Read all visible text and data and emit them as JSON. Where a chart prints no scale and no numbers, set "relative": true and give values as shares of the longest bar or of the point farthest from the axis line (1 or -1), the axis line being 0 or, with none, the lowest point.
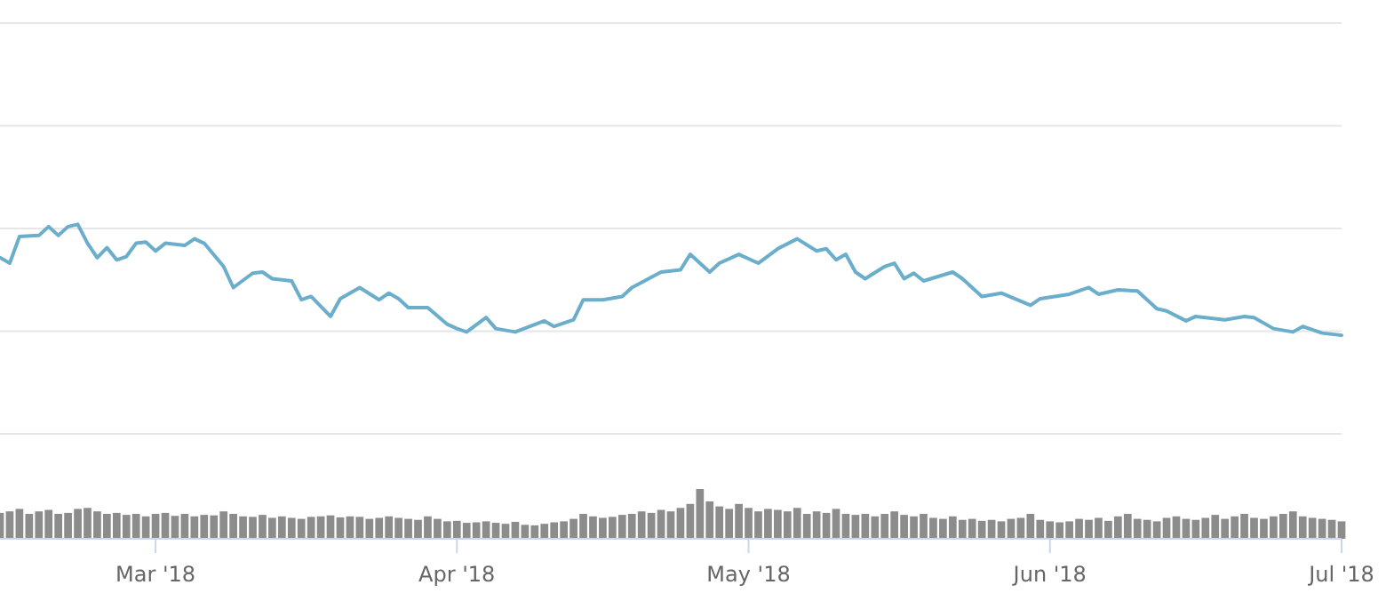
{
  "chart_data": [
    {
      "type": "line",
      "relative": true,
      "xlim": [
        "2018-02-13",
        "2018-07-01"
      ],
      "x": [
        "2018-02-13",
        "2018-02-14",
        "2018-02-15",
        "2018-02-17",
        "2018-02-18",
        "2018-02-19",
        "2018-02-20",
        "2018-02-21",
        "2018-02-22",
        "2018-02-23",
        "2018-02-24",
        "2018-02-25",
        "2018-02-26",
        "2018-02-27",
        "2018-02-28",
        "2018-03-01",
        "2018-03-02",
        "2018-03-04",
        "2018-03-05",
        "2018-03-06",
        "2018-03-08",
        "2018-03-09",
        "2018-03-11",
        "2018-03-12",
        "2018-03-13",
        "2018-03-15",
        "2018-03-16",
        "2018-03-17",
        "2018-03-19",
        "2018-03-20",
        "2018-03-22",
        "2018-03-24",
        "2018-03-25",
        "2018-03-26",
        "2018-03-27",
        "2018-03-29",
        "2018-03-31",
        "2018-04-01",
        "2018-04-02",
        "2018-04-04",
        "2018-04-05",
        "2018-04-07",
        "2018-04-10",
        "2018-04-11",
        "2018-04-13",
        "2018-04-14",
        "2018-04-16",
        "2018-04-18",
        "2018-04-19",
        "2018-04-22",
        "2018-04-24",
        "2018-04-25",
        "2018-04-27",
        "2018-04-28",
        "2018-04-30",
        "2018-05-02",
        "2018-05-04",
        "2018-05-06",
        "2018-05-08",
        "2018-05-09",
        "2018-05-10",
        "2018-05-11",
        "2018-05-12",
        "2018-05-13",
        "2018-05-15",
        "2018-05-16",
        "2018-05-17",
        "2018-05-18",
        "2018-05-19",
        "2018-05-22",
        "2018-05-23",
        "2018-05-25",
        "2018-05-27",
        "2018-05-30",
        "2018-05-31",
        "2018-06-03",
        "2018-06-05",
        "2018-06-06",
        "2018-06-08",
        "2018-06-10",
        "2018-06-12",
        "2018-06-13",
        "2018-06-15",
        "2018-06-16",
        "2018-06-19",
        "2018-06-21",
        "2018-06-22",
        "2018-06-24",
        "2018-06-26",
        "2018-06-27",
        "2018-06-29",
        "2018-07-01"
      ],
      "series": [
        {
          "color": "#6aaecb",
          "values": [
            0.7,
            0.65,
            0.89,
            0.9,
            0.98,
            0.9,
            0.98,
            1.0,
            0.83,
            0.7,
            0.79,
            0.68,
            0.71,
            0.83,
            0.84,
            0.76,
            0.83,
            0.81,
            0.87,
            0.83,
            0.62,
            0.43,
            0.56,
            0.57,
            0.51,
            0.49,
            0.32,
            0.35,
            0.17,
            0.33,
            0.43,
            0.32,
            0.38,
            0.33,
            0.25,
            0.25,
            0.1,
            0.06,
            0.03,
            0.16,
            0.06,
            0.03,
            0.13,
            0.08,
            0.14,
            0.32,
            0.32,
            0.35,
            0.43,
            0.57,
            0.59,
            0.73,
            0.57,
            0.65,
            0.73,
            0.65,
            0.78,
            0.87,
            0.76,
            0.78,
            0.68,
            0.73,
            0.57,
            0.51,
            0.62,
            0.65,
            0.51,
            0.56,
            0.49,
            0.57,
            0.51,
            0.35,
            0.38,
            0.27,
            0.33,
            0.37,
            0.43,
            0.37,
            0.41,
            0.4,
            0.24,
            0.22,
            0.13,
            0.17,
            0.14,
            0.17,
            0.16,
            0.06,
            0.03,
            0.08,
            0.02,
            0.0
          ]
        }
      ]
    },
    {
      "type": "bar",
      "relative": true,
      "xlim": [
        "2018-02-13",
        "2018-07-01"
      ],
      "xticks": [
        {
          "value": "2018-03-01",
          "label": "Mar '18"
        },
        {
          "value": "2018-04-01",
          "label": "Apr '18"
        },
        {
          "value": "2018-05-01",
          "label": "May '18"
        },
        {
          "value": "2018-06-01",
          "label": "Jun '18"
        },
        {
          "value": "2018-07-01",
          "label": "Jul '18"
        }
      ],
      "x": [
        "2018-02-13",
        "2018-02-14",
        "2018-02-15",
        "2018-02-16",
        "2018-02-17",
        "2018-02-18",
        "2018-02-19",
        "2018-02-20",
        "2018-02-21",
        "2018-02-22",
        "2018-02-23",
        "2018-02-24",
        "2018-02-25",
        "2018-02-26",
        "2018-02-27",
        "2018-02-28",
        "2018-03-01",
        "2018-03-02",
        "2018-03-03",
        "2018-03-04",
        "2018-03-05",
        "2018-03-06",
        "2018-03-07",
        "2018-03-08",
        "2018-03-09",
        "2018-03-10",
        "2018-03-11",
        "2018-03-12",
        "2018-03-13",
        "2018-03-14",
        "2018-03-15",
        "2018-03-16",
        "2018-03-17",
        "2018-03-18",
        "2018-03-19",
        "2018-03-20",
        "2018-03-21",
        "2018-03-22",
        "2018-03-23",
        "2018-03-24",
        "2018-03-25",
        "2018-03-26",
        "2018-03-27",
        "2018-03-28",
        "2018-03-29",
        "2018-03-30",
        "2018-03-31",
        "2018-04-01",
        "2018-04-02",
        "2018-04-03",
        "2018-04-04",
        "2018-04-05",
        "2018-04-06",
        "2018-04-07",
        "2018-04-08",
        "2018-04-09",
        "2018-04-10",
        "2018-04-11",
        "2018-04-12",
        "2018-04-13",
        "2018-04-14",
        "2018-04-15",
        "2018-04-16",
        "2018-04-17",
        "2018-04-18",
        "2018-04-19",
        "2018-04-20",
        "2018-04-21",
        "2018-04-22",
        "2018-04-23",
        "2018-04-24",
        "2018-04-25",
        "2018-04-26",
        "2018-04-27",
        "2018-04-28",
        "2018-04-29",
        "2018-04-30",
        "2018-05-01",
        "2018-05-02",
        "2018-05-03",
        "2018-05-04",
        "2018-05-05",
        "2018-05-06",
        "2018-05-07",
        "2018-05-08",
        "2018-05-09",
        "2018-05-10",
        "2018-05-11",
        "2018-05-12",
        "2018-05-13",
        "2018-05-14",
        "2018-05-15",
        "2018-05-16",
        "2018-05-17",
        "2018-05-18",
        "2018-05-19",
        "2018-05-20",
        "2018-05-21",
        "2018-05-22",
        "2018-05-23",
        "2018-05-24",
        "2018-05-25",
        "2018-05-26",
        "2018-05-27",
        "2018-05-28",
        "2018-05-29",
        "2018-05-30",
        "2018-05-31",
        "2018-06-01",
        "2018-06-02",
        "2018-06-03",
        "2018-06-04",
        "2018-06-05",
        "2018-06-06",
        "2018-06-07",
        "2018-06-08",
        "2018-06-09",
        "2018-06-10",
        "2018-06-11",
        "2018-06-12",
        "2018-06-13",
        "2018-06-14",
        "2018-06-15",
        "2018-06-16",
        "2018-06-17",
        "2018-06-18",
        "2018-06-19",
        "2018-06-20",
        "2018-06-21",
        "2018-06-22",
        "2018-06-23",
        "2018-06-24",
        "2018-06-25",
        "2018-06-26",
        "2018-06-27",
        "2018-06-28",
        "2018-06-29",
        "2018-06-30",
        "2018-07-01"
      ],
      "series": [
        {
          "color": "#8c8c8c",
          "values": [
            0.52,
            0.55,
            0.6,
            0.5,
            0.55,
            0.58,
            0.5,
            0.52,
            0.6,
            0.62,
            0.55,
            0.5,
            0.52,
            0.48,
            0.5,
            0.45,
            0.5,
            0.52,
            0.46,
            0.5,
            0.45,
            0.48,
            0.47,
            0.55,
            0.5,
            0.45,
            0.44,
            0.48,
            0.42,
            0.45,
            0.42,
            0.4,
            0.44,
            0.45,
            0.47,
            0.43,
            0.45,
            0.44,
            0.4,
            0.42,
            0.45,
            0.42,
            0.4,
            0.38,
            0.45,
            0.4,
            0.35,
            0.36,
            0.32,
            0.33,
            0.35,
            0.32,
            0.3,
            0.34,
            0.28,
            0.27,
            0.3,
            0.33,
            0.35,
            0.4,
            0.5,
            0.45,
            0.42,
            0.44,
            0.48,
            0.5,
            0.55,
            0.52,
            0.58,
            0.55,
            0.62,
            0.7,
            1.0,
            0.75,
            0.65,
            0.6,
            0.7,
            0.62,
            0.55,
            0.6,
            0.58,
            0.55,
            0.62,
            0.5,
            0.55,
            0.52,
            0.6,
            0.5,
            0.48,
            0.5,
            0.45,
            0.5,
            0.55,
            0.48,
            0.45,
            0.5,
            0.42,
            0.4,
            0.45,
            0.38,
            0.4,
            0.36,
            0.38,
            0.35,
            0.4,
            0.42,
            0.5,
            0.38,
            0.35,
            0.33,
            0.35,
            0.4,
            0.38,
            0.42,
            0.36,
            0.45,
            0.5,
            0.4,
            0.38,
            0.35,
            0.42,
            0.45,
            0.4,
            0.38,
            0.42,
            0.48,
            0.4,
            0.45,
            0.5,
            0.42,
            0.4,
            0.45,
            0.5,
            0.55,
            0.45,
            0.42,
            0.4,
            0.38,
            0.35
          ]
        }
      ]
    }
  ]
}
